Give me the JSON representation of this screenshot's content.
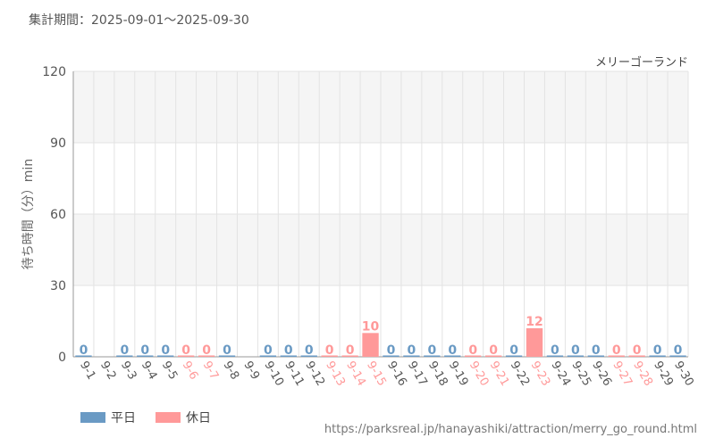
{
  "header": {
    "period": "集計期間：2025-09-01～2025-09-30"
  },
  "footer": {
    "source": "https://parksreal.jp/hanayashiki/attraction/merry_go_round.html"
  },
  "colors": {
    "weekday": "#6a9ac4",
    "holiday": "#ff9999",
    "grid": "#e3e3e3",
    "band": "#f5f5f5"
  },
  "chart_data": {
    "type": "bar",
    "title": "メリーゴーランド",
    "ylabel": "待ち時間（分）min",
    "xlabel": "",
    "ylim": [
      0,
      120
    ],
    "yticks": [
      0,
      30,
      60,
      90,
      120
    ],
    "grid": true,
    "legend": "bottom-left",
    "categories": [
      "9-1",
      "9-2",
      "9-3",
      "9-4",
      "9-5",
      "9-6",
      "9-7",
      "9-8",
      "9-9",
      "9-10",
      "9-11",
      "9-12",
      "9-13",
      "9-14",
      "9-15",
      "9-16",
      "9-17",
      "9-18",
      "9-19",
      "9-20",
      "9-21",
      "9-22",
      "9-23",
      "9-24",
      "9-25",
      "9-26",
      "9-27",
      "9-28",
      "9-29",
      "9-30"
    ],
    "day_types": [
      "weekday",
      "none",
      "weekday",
      "weekday",
      "weekday",
      "holiday",
      "holiday",
      "weekday",
      "none",
      "weekday",
      "weekday",
      "weekday",
      "holiday",
      "holiday",
      "holiday",
      "weekday",
      "weekday",
      "weekday",
      "weekday",
      "holiday",
      "holiday",
      "weekday",
      "holiday",
      "weekday",
      "weekday",
      "weekday",
      "holiday",
      "holiday",
      "weekday",
      "weekday"
    ],
    "values": [
      0,
      null,
      0,
      0,
      0,
      0,
      0,
      0,
      null,
      0,
      0,
      0,
      0,
      0,
      10,
      0,
      0,
      0,
      0,
      0,
      0,
      0,
      12,
      0,
      0,
      0,
      0,
      0,
      0,
      0
    ],
    "series": [
      {
        "name": "平日",
        "color": "#6a9ac4"
      },
      {
        "name": "休日",
        "color": "#ff9999"
      }
    ]
  }
}
